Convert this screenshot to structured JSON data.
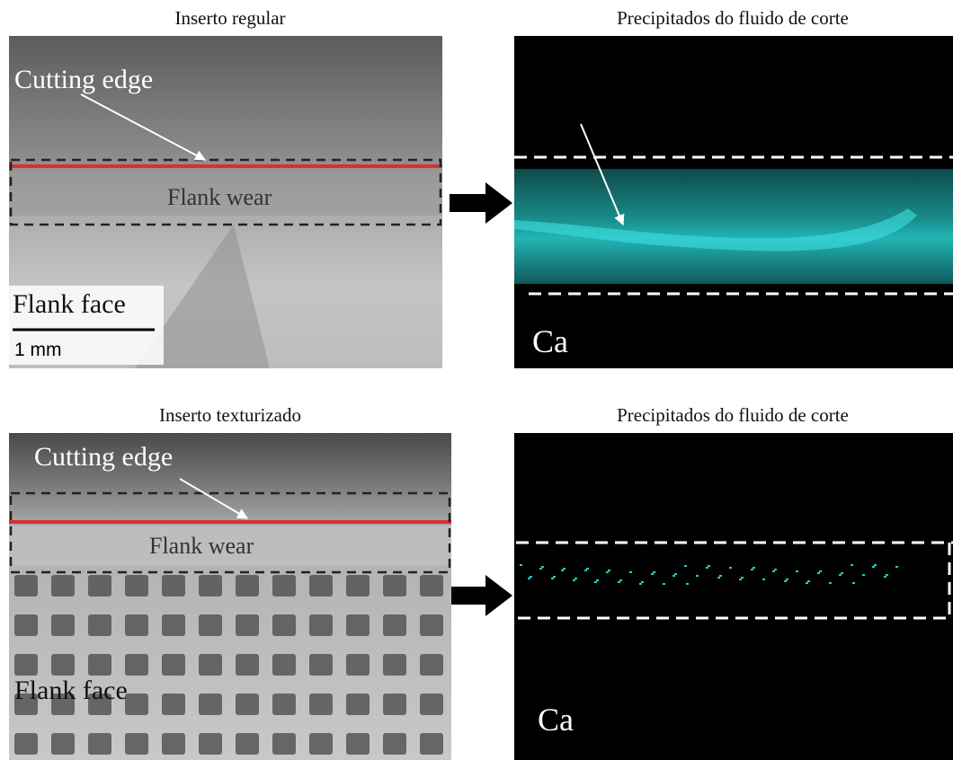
{
  "panels": [
    {
      "title": "Inserto regular",
      "labels": [
        "Cutting edge",
        "Flank wear",
        "Flank face"
      ],
      "scale_bar": "1 mm"
    },
    {
      "title": "Precipitados do fluido de corte",
      "element": "Ca"
    },
    {
      "title": "Inserto texturizado",
      "labels": [
        "Cutting edge",
        "Flank wear",
        "Flank face"
      ]
    },
    {
      "title": "Precipitados do fluido de corte",
      "element": "Ca"
    }
  ]
}
